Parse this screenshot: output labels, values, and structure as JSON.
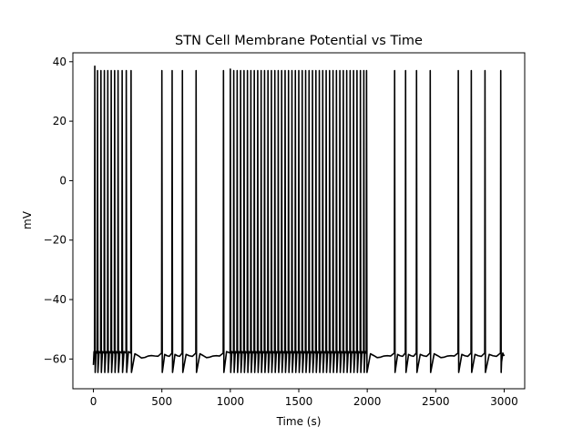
{
  "chart_data": {
    "type": "line",
    "title": "STN Cell Membrane Potential vs Time",
    "xlabel": "Time (s)",
    "ylabel": "mV",
    "xlim": [
      -150,
      3150
    ],
    "ylim": [
      -70,
      43
    ],
    "xticks": [
      0,
      500,
      1000,
      1500,
      2000,
      2500,
      3000
    ],
    "xtick_labels": [
      "0",
      "500",
      "1000",
      "1500",
      "2000",
      "2500",
      "3000"
    ],
    "yticks": [
      -60,
      -40,
      -20,
      0,
      20,
      40
    ],
    "ytick_labels": [
      "−60",
      "−40",
      "−20",
      "0",
      "20",
      "40"
    ],
    "grid": false,
    "line_color": "#000000",
    "baseline_mv": -59,
    "peak_mv": 37,
    "trough_mv": -64.5,
    "series": [
      {
        "spike_times": [
          10,
          30,
          55,
          80,
          105,
          130,
          155,
          180,
          210,
          240,
          275,
          500,
          575,
          650,
          750,
          950,
          1000,
          1025,
          1050,
          1075,
          1100,
          1125,
          1150,
          1175,
          1200,
          1225,
          1250,
          1275,
          1300,
          1325,
          1350,
          1375,
          1400,
          1425,
          1450,
          1475,
          1500,
          1525,
          1550,
          1575,
          1600,
          1625,
          1650,
          1675,
          1700,
          1725,
          1750,
          1775,
          1800,
          1825,
          1850,
          1875,
          1900,
          1925,
          1950,
          1975,
          1995,
          2200,
          2280,
          2360,
          2460,
          2665,
          2760,
          2860,
          2975
        ],
        "spike_peaks": [
          38.5,
          37,
          37,
          37,
          37,
          37,
          37,
          37,
          37,
          37,
          37,
          37,
          37,
          37,
          37,
          37,
          37.5,
          37,
          37,
          37,
          37,
          37,
          37,
          37,
          37,
          37,
          37,
          37,
          37,
          37,
          37,
          37,
          37,
          37,
          37,
          37,
          37,
          37,
          37,
          37,
          37,
          37,
          37,
          37,
          37,
          37,
          37,
          37,
          37,
          37,
          37,
          37,
          37,
          37,
          37,
          37,
          37,
          37,
          37,
          37,
          37,
          37,
          37,
          37,
          37
        ]
      }
    ],
    "end_time": 3000,
    "end_value": -59
  }
}
